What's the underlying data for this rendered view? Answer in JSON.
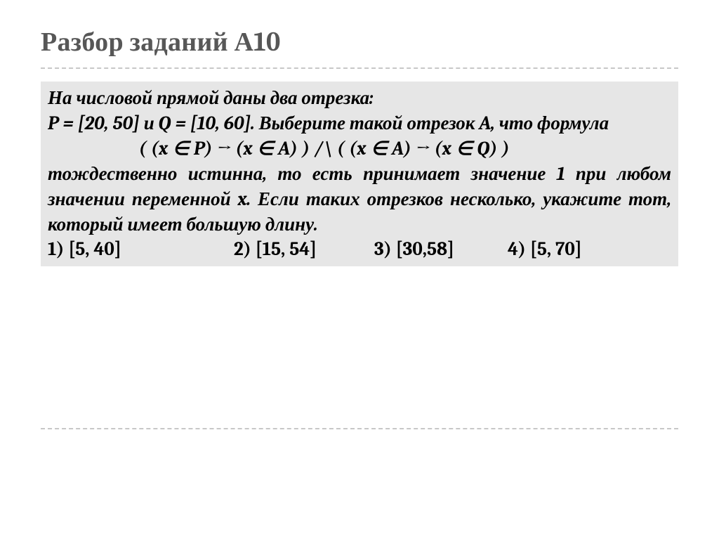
{
  "slide": {
    "title": "Разбор заданий А10",
    "title_color": "#575757",
    "title_fontsize": 38,
    "rule_color": "#c7c7c7",
    "box_bg": "#e6e6e6",
    "body_fontsize": 27,
    "problem": {
      "line1": "На числовой прямой даны два отрезка:",
      "line2": "P = [20, 50] и Q = [10, 60]. Выберите такой отрезок A, что формула",
      "formula": "( (x ∈ P) → (x ∈ A) ) /\\ ( (x ∈ A) → (x ∈ Q) )",
      "line3": "тождественно истинна, то есть принимает значение 1 при любом значении переменной x. Если таких отрезков несколько, укажите тот, который имеет большую длину.",
      "answers": {
        "a1": "1) [5, 40]",
        "a2": "2) [15, 54]",
        "a3": "3) [30,58]",
        "a4": "4) [5, 70]"
      }
    }
  }
}
